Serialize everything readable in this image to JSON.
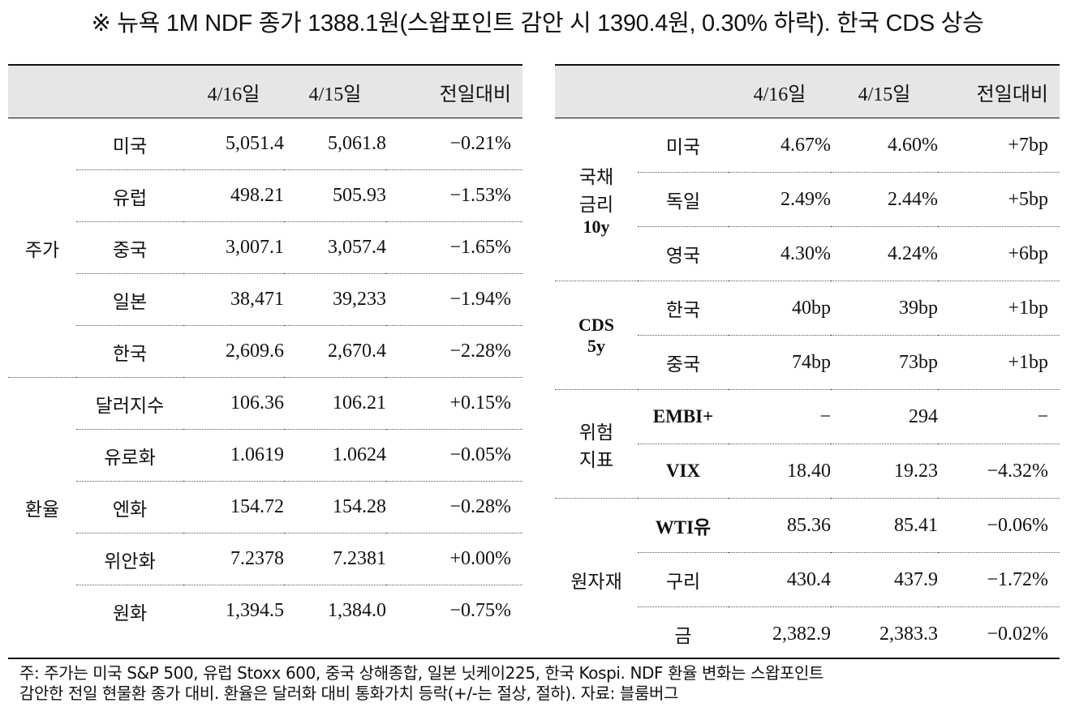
{
  "title": "※ 뉴욕 1M NDF 종가 1388.1원(스왑포인트 감안 시 1390.4원, 0.30% 하락). 한국 CDS 상승",
  "left_table": {
    "headers": [
      "",
      "",
      "4/16일",
      "4/15일",
      "전일대비"
    ],
    "groups": [
      {
        "label": "주가",
        "rows": [
          {
            "name": "미국",
            "d1": "5,051.4",
            "d0": "5,061.8",
            "chg": "−0.21%"
          },
          {
            "name": "유럽",
            "d1": "498.21",
            "d0": "505.93",
            "chg": "−1.53%"
          },
          {
            "name": "중국",
            "d1": "3,007.1",
            "d0": "3,057.4",
            "chg": "−1.65%"
          },
          {
            "name": "일본",
            "d1": "38,471",
            "d0": "39,233",
            "chg": "−1.94%"
          },
          {
            "name": "한국",
            "d1": "2,609.6",
            "d0": "2,670.4",
            "chg": "−2.28%"
          }
        ]
      },
      {
        "label": "환율",
        "rows": [
          {
            "name": "달러지수",
            "d1": "106.36",
            "d0": "106.21",
            "chg": "+0.15%"
          },
          {
            "name": "유로화",
            "d1": "1.0619",
            "d0": "1.0624",
            "chg": "−0.05%"
          },
          {
            "name": "엔화",
            "d1": "154.72",
            "d0": "154.28",
            "chg": "−0.28%"
          },
          {
            "name": "위안화",
            "d1": "7.2378",
            "d0": "7.2381",
            "chg": "+0.00%"
          },
          {
            "name": "원화",
            "d1": "1,394.5",
            "d0": "1,384.0",
            "chg": "−0.75%"
          }
        ]
      }
    ]
  },
  "right_table": {
    "headers": [
      "",
      "",
      "4/16일",
      "4/15일",
      "전일대비"
    ],
    "groups": [
      {
        "label_lines": [
          "국채",
          "금리",
          "10y"
        ],
        "rows": [
          {
            "name": "미국",
            "d1": "4.67%",
            "d0": "4.60%",
            "chg": "+7bp"
          },
          {
            "name": "독일",
            "d1": "2.49%",
            "d0": "2.44%",
            "chg": "+5bp"
          },
          {
            "name": "영국",
            "d1": "4.30%",
            "d0": "4.24%",
            "chg": "+6bp"
          }
        ]
      },
      {
        "label_lines": [
          "CDS",
          "5y"
        ],
        "rows": [
          {
            "name": "한국",
            "d1": "40bp",
            "d0": "39bp",
            "chg": "+1bp"
          },
          {
            "name": "중국",
            "d1": "74bp",
            "d0": "73bp",
            "chg": "+1bp"
          }
        ]
      },
      {
        "label_lines": [
          "위험",
          "지표"
        ],
        "rows": [
          {
            "name": "EMBI+",
            "d1": "−",
            "d0": "294",
            "chg": "−"
          },
          {
            "name": "VIX",
            "d1": "18.40",
            "d0": "19.23",
            "chg": "−4.32%"
          }
        ]
      },
      {
        "label_lines": [
          "원자재"
        ],
        "rows": [
          {
            "name": "WTI유",
            "d1": "85.36",
            "d0": "85.41",
            "chg": "−0.06%"
          },
          {
            "name": "구리",
            "d1": "430.4",
            "d0": "437.9",
            "chg": "−1.72%"
          },
          {
            "name": "금",
            "d1": "2,382.9",
            "d0": "2,383.3",
            "chg": "−0.02%"
          }
        ]
      }
    ]
  },
  "footnote": {
    "line1": "주: 주가는 미국 S&P 500, 유럽 Stoxx 600, 중국 상해종합, 일본 닛케이225, 한국 Kospi. NDF 환율 변화는 스왑포인트",
    "line2": "감안한 전일 현물환 종가 대비. 환율은 달러화 대비 통화가치 등락(+/-는 절상, 절하). 자료: 블룸버그"
  }
}
